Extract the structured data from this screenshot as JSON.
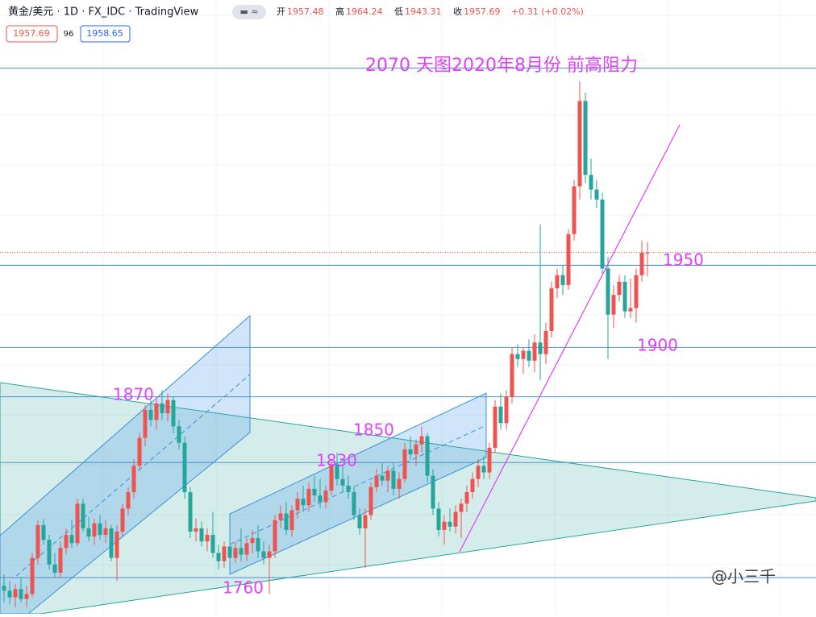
{
  "header": {
    "title": "黄金/美元 · 1D · FX_IDC · TradingView",
    "open_label": "开",
    "high_label": "高",
    "low_label": "低",
    "close_label": "收",
    "change": "+0.31 (+0.02%)",
    "spread": "96",
    "ask": "1958.65"
  },
  "chart_data": {
    "type": "candlestick",
    "ylim": [
      1738,
      2082
    ],
    "up_color": "#ef5350",
    "down_color": "#26a69a",
    "open": [
      1755,
      1752,
      1748,
      1753,
      1747,
      1750,
      1772,
      1792,
      1783,
      1768,
      1763,
      1778,
      1786,
      1781,
      1805,
      1790,
      1785,
      1793,
      1786,
      1790,
      1772,
      1788,
      1802,
      1812,
      1828,
      1845,
      1862,
      1856,
      1866,
      1860,
      1868,
      1852,
      1842,
      1812,
      1788,
      1790,
      1782,
      1786,
      1775,
      1770,
      1779,
      1772,
      1778,
      1774,
      1781,
      1784,
      1776,
      1772,
      1776,
      1795,
      1799,
      1789,
      1801,
      1808,
      1804,
      1814,
      1810,
      1806,
      1813,
      1829,
      1820,
      1816,
      1812,
      1798,
      1790,
      1798,
      1815,
      1822,
      1819,
      1825,
      1814,
      1820,
      1838,
      1835,
      1841,
      1846,
      1822,
      1802,
      1789,
      1794,
      1791,
      1800,
      1805,
      1812,
      1820,
      1828,
      1824,
      1839,
      1864,
      1854,
      1870,
      1896,
      1893,
      1898,
      1892,
      1903,
      1896,
      1910,
      1936,
      1944,
      1938,
      1969,
      1998,
      2050,
      2005,
      1996,
      1990,
      1948,
      1920,
      1932,
      1940,
      1922,
      1924,
      1944,
      1957.48
    ],
    "high": [
      1762,
      1758,
      1756,
      1760,
      1755,
      1775,
      1795,
      1796,
      1786,
      1775,
      1782,
      1790,
      1795,
      1808,
      1808,
      1797,
      1796,
      1798,
      1795,
      1792,
      1792,
      1805,
      1815,
      1832,
      1848,
      1865,
      1868,
      1870,
      1874,
      1872,
      1870,
      1856,
      1846,
      1815,
      1796,
      1794,
      1790,
      1800,
      1780,
      1782,
      1784,
      1782,
      1790,
      1784,
      1789,
      1792,
      1782,
      1780,
      1798,
      1804,
      1806,
      1804,
      1812,
      1816,
      1818,
      1822,
      1820,
      1816,
      1832,
      1836,
      1828,
      1822,
      1815,
      1802,
      1802,
      1818,
      1826,
      1830,
      1828,
      1830,
      1824,
      1842,
      1846,
      1844,
      1852,
      1848,
      1826,
      1806,
      1798,
      1802,
      1804,
      1808,
      1816,
      1824,
      1832,
      1834,
      1842,
      1868,
      1872,
      1874,
      1900,
      1902,
      1900,
      1905,
      1908,
      1975,
      1915,
      1940,
      1948,
      1950,
      1972,
      2002,
      2062,
      2055,
      2015,
      2002,
      1994,
      1955,
      1938,
      1944,
      1944,
      1942,
      1948,
      1965,
      1964.24
    ],
    "low": [
      1745,
      1744,
      1742,
      1745,
      1742,
      1748,
      1768,
      1780,
      1765,
      1760,
      1760,
      1774,
      1778,
      1779,
      1788,
      1782,
      1780,
      1783,
      1781,
      1770,
      1758,
      1785,
      1798,
      1808,
      1825,
      1840,
      1852,
      1850,
      1856,
      1855,
      1848,
      1838,
      1808,
      1784,
      1782,
      1779,
      1776,
      1772,
      1765,
      1766,
      1768,
      1769,
      1770,
      1770,
      1775,
      1772,
      1768,
      1750,
      1772,
      1790,
      1786,
      1785,
      1796,
      1800,
      1800,
      1806,
      1802,
      1802,
      1810,
      1816,
      1812,
      1808,
      1795,
      1786,
      1766,
      1795,
      1812,
      1816,
      1812,
      1810,
      1808,
      1818,
      1832,
      1828,
      1836,
      1818,
      1798,
      1785,
      1780,
      1788,
      1787,
      1784,
      1800,
      1808,
      1815,
      1820,
      1820,
      1836,
      1850,
      1850,
      1866,
      1888,
      1884,
      1888,
      1885,
      1880,
      1890,
      1906,
      1930,
      1932,
      1935,
      1965,
      1990,
      2000,
      1990,
      1985,
      1945,
      1893,
      1912,
      1928,
      1918,
      1918,
      1915,
      1940,
      1943.31
    ],
    "close": [
      1752,
      1748,
      1753,
      1747,
      1750,
      1772,
      1792,
      1783,
      1768,
      1763,
      1778,
      1786,
      1781,
      1805,
      1790,
      1785,
      1793,
      1786,
      1790,
      1772,
      1788,
      1802,
      1812,
      1828,
      1845,
      1862,
      1856,
      1866,
      1860,
      1868,
      1852,
      1842,
      1812,
      1788,
      1790,
      1782,
      1786,
      1775,
      1770,
      1779,
      1772,
      1778,
      1774,
      1781,
      1784,
      1776,
      1772,
      1776,
      1795,
      1799,
      1789,
      1801,
      1808,
      1804,
      1814,
      1810,
      1806,
      1813,
      1829,
      1820,
      1816,
      1812,
      1798,
      1790,
      1798,
      1815,
      1822,
      1819,
      1825,
      1814,
      1820,
      1838,
      1835,
      1841,
      1846,
      1822,
      1802,
      1789,
      1794,
      1791,
      1800,
      1805,
      1812,
      1820,
      1828,
      1824,
      1839,
      1864,
      1854,
      1870,
      1896,
      1893,
      1898,
      1892,
      1903,
      1896,
      1910,
      1936,
      1944,
      1938,
      1969,
      1998,
      2050,
      2005,
      1996,
      1990,
      1948,
      1920,
      1932,
      1940,
      1922,
      1924,
      1944,
      1957.69,
      1957.69
    ],
    "hlines": [
      2070,
      1950,
      1900,
      1870,
      1830,
      1760
    ],
    "annotations": [
      "2070 天图2020年8月份 前高阻力",
      "1950",
      "1900",
      "1870",
      "1850",
      "1830",
      "1760"
    ],
    "watermark": "@小三千"
  }
}
